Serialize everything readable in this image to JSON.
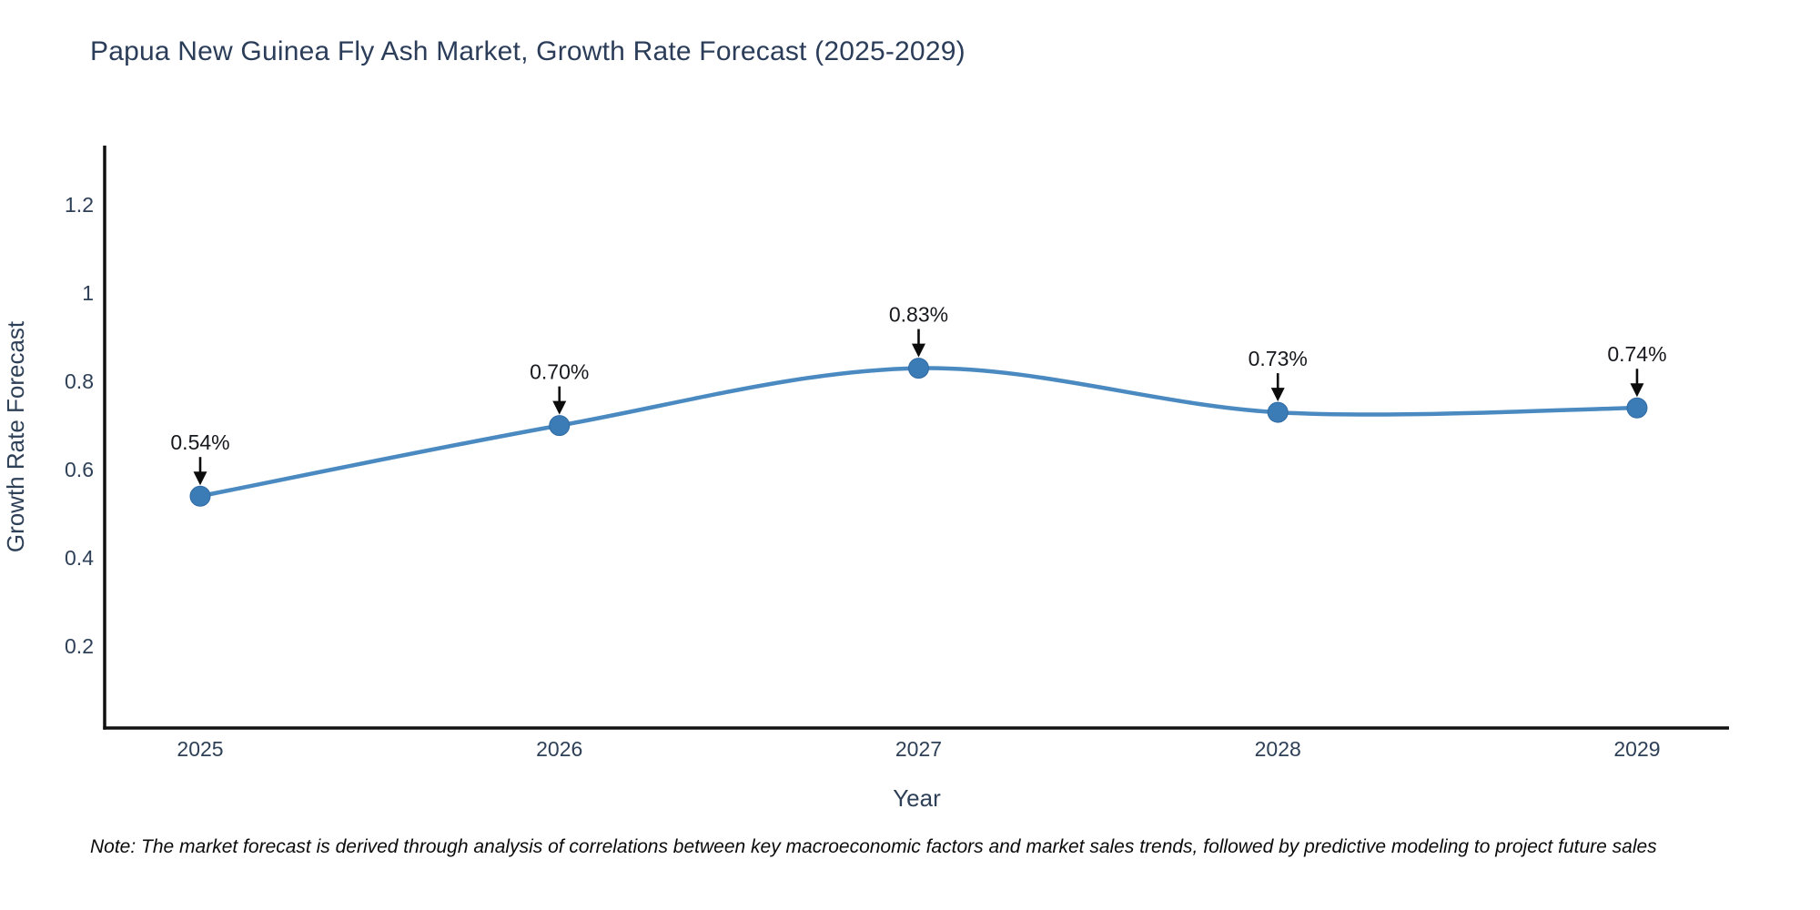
{
  "page": {
    "note": "Note: The market forecast is derived through analysis of correlations between key macroeconomic factors and market sales trends, followed by predictive modeling to project future sales"
  },
  "chart_data": {
    "type": "line",
    "title": "Papua New Guinea Fly Ash Market, Growth Rate Forecast (2025-2029)",
    "xlabel": "Year",
    "ylabel": "Growth Rate Forecast",
    "x": [
      2025,
      2026,
      2027,
      2028,
      2029
    ],
    "values": [
      0.54,
      0.7,
      0.83,
      0.73,
      0.74
    ],
    "point_labels": [
      "0.54%",
      "0.70%",
      "0.83%",
      "0.73%",
      "0.74%"
    ],
    "yticks": [
      0.2,
      0.4,
      0.6,
      0.8,
      1,
      1.2
    ],
    "ytick_labels": [
      "0.2",
      "0.4",
      "0.6",
      "0.8",
      "1",
      "1.2"
    ],
    "xtick_labels": [
      "2025",
      "2026",
      "2027",
      "2028",
      "2029"
    ],
    "ylim": [
      0.0145,
      1.3345
    ],
    "xlim": [
      2024.734,
      2029.256
    ],
    "grid": false,
    "legend_position": "none",
    "curve": "spline",
    "colors": {
      "line": "#4a8ac1",
      "marker": "#3c7cb6",
      "marker_edge": "#2f6aa3",
      "axis": "#111111",
      "tick_text": "#2e4057",
      "axis_title_text": "#2e4057",
      "annotation_text": "#16181d",
      "annotation_arrow": "#0c0c0c",
      "background": "#ffffff"
    }
  }
}
